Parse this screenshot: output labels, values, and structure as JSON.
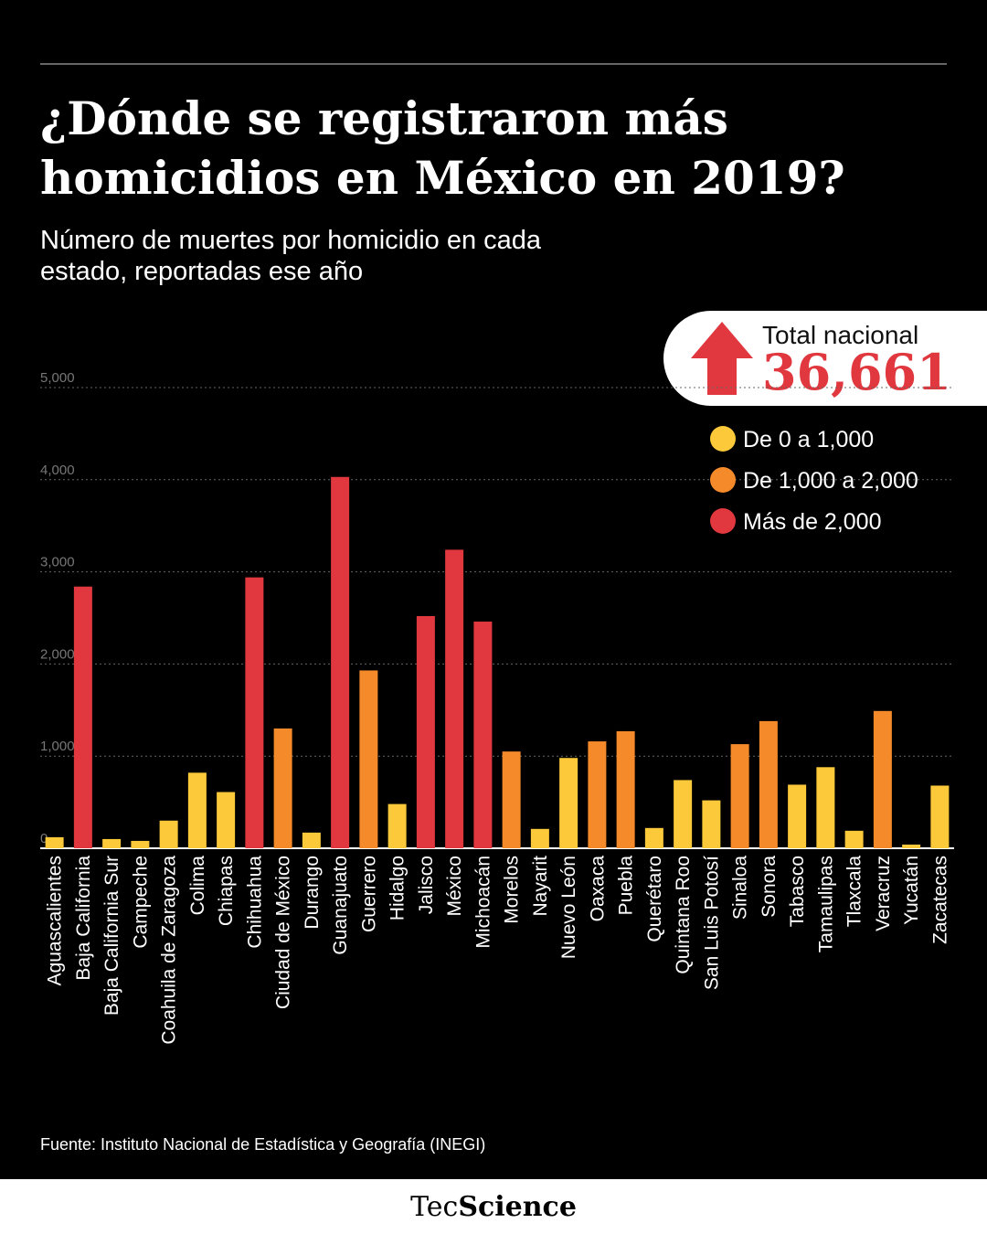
{
  "chart_data": {
    "type": "bar",
    "title": [
      "¿Dónde se registraron más",
      "homicidios en México en 2019?"
    ],
    "subtitle": [
      "Número de muertes por homicidio en cada",
      "estado, reportadas ese año"
    ],
    "categories": [
      "Aguascalientes",
      "Baja California",
      "Baja California Sur",
      "Campeche",
      "Coahuila de Zaragoza",
      "Colima",
      "Chiapas",
      "Chihuahua",
      "Ciudad de México",
      "Durango",
      "Guanajuato",
      "Guerrero",
      "Hidalgo",
      "Jalisco",
      "México",
      "Michoacán",
      "Morelos",
      "Nayarit",
      "Nuevo León",
      "Oaxaca",
      "Puebla",
      "Querétaro",
      "Quintana Roo",
      "San Luis Potosí",
      "Sinaloa",
      "Sonora",
      "Tabasco",
      "Tamaulipas",
      "Tlaxcala",
      "Veracruz",
      "Yucatán",
      "Zacatecas"
    ],
    "values": [
      120,
      2840,
      100,
      80,
      300,
      820,
      610,
      2940,
      1300,
      170,
      4030,
      1930,
      480,
      2520,
      3240,
      2460,
      1050,
      210,
      980,
      1160,
      1270,
      220,
      740,
      520,
      1130,
      1380,
      690,
      880,
      190,
      1490,
      40,
      680
    ],
    "colors": [
      "#fcc93a",
      "#e0383e",
      "#fcc93a",
      "#fcc93a",
      "#fcc93a",
      "#fcc93a",
      "#fcc93a",
      "#e0383e",
      "#f58a2a",
      "#fcc93a",
      "#e0383e",
      "#f58a2a",
      "#fcc93a",
      "#e0383e",
      "#e0383e",
      "#e0383e",
      "#f58a2a",
      "#fcc93a",
      "#fcc93a",
      "#f58a2a",
      "#f58a2a",
      "#fcc93a",
      "#fcc93a",
      "#fcc93a",
      "#f58a2a",
      "#f58a2a",
      "#fcc93a",
      "#fcc93a",
      "#fcc93a",
      "#f58a2a",
      "#fcc93a",
      "#fcc93a"
    ],
    "highlight": {
      "index": 10,
      "color": "#e0383e"
    },
    "ylim": [
      0,
      5000
    ],
    "yticks": [
      0,
      {
        "value": 1000,
        "label": "1,000"
      },
      {
        "value": 2000,
        "label": "2,000"
      },
      {
        "value": 3000,
        "label": "3,000"
      },
      {
        "value": 4000,
        "label": "4,000"
      },
      {
        "value": 5000,
        "label": "5,000"
      }
    ],
    "grid": true,
    "legend": [
      {
        "name": "De 0 a 1,000",
        "color": "#fcc93a"
      },
      {
        "name": "De 1,000 a 2,000",
        "color": "#f58a2a"
      },
      {
        "name": "Más de 2,000",
        "color": "#e0383e"
      }
    ],
    "total": {
      "label": "Total nacional",
      "value": "36,661"
    },
    "source": "Fuente: Instituto Nacional de Estadística y Geografía (INEGI)",
    "brand": [
      "Tec",
      "Science"
    ]
  }
}
